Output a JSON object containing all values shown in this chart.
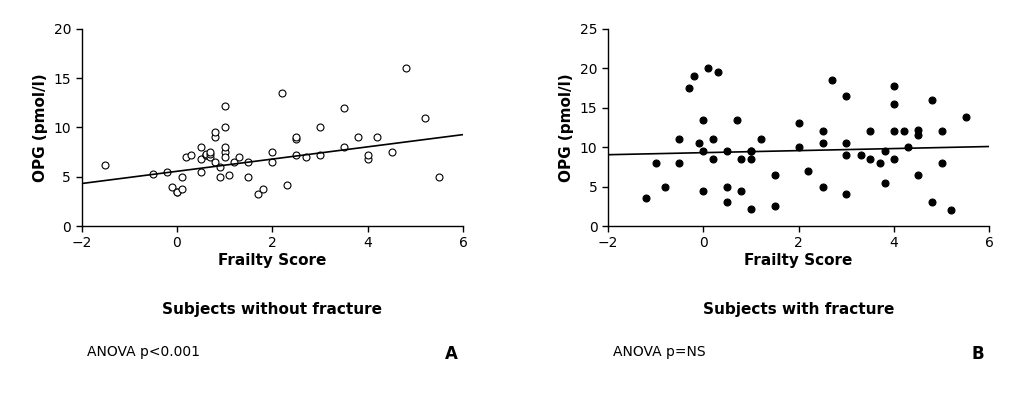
{
  "panel_A": {
    "title": "Subjects without fracture",
    "anova_text": "ANOVA p<0.001",
    "panel_label": "A",
    "xlabel": "Frailty Score",
    "ylabel": "OPG (pmol/l)",
    "xlim": [
      -2,
      6
    ],
    "ylim": [
      0,
      20
    ],
    "xticks": [
      -2,
      0,
      2,
      4,
      6
    ],
    "yticks": [
      0,
      5,
      10,
      15,
      20
    ],
    "marker": "o",
    "marker_facecolor": "white",
    "marker_edgecolor": "black",
    "marker_size": 5,
    "line_color": "black",
    "line_slope": 0.62,
    "line_intercept": 5.55,
    "scatter_x": [
      -1.5,
      -0.5,
      -0.2,
      -0.1,
      0.0,
      0.0,
      0.1,
      0.1,
      0.2,
      0.3,
      0.5,
      0.5,
      0.5,
      0.6,
      0.6,
      0.6,
      0.7,
      0.7,
      0.7,
      0.8,
      0.8,
      0.8,
      0.9,
      0.9,
      1.0,
      1.0,
      1.0,
      1.0,
      1.0,
      1.1,
      1.2,
      1.3,
      1.5,
      1.5,
      1.7,
      1.8,
      2.0,
      2.0,
      2.2,
      2.3,
      2.5,
      2.5,
      2.5,
      2.7,
      3.0,
      3.0,
      3.5,
      3.5,
      3.8,
      4.0,
      4.0,
      4.2,
      4.5,
      4.8,
      5.2,
      5.5
    ],
    "scatter_y": [
      6.2,
      5.3,
      5.5,
      4.0,
      3.5,
      3.5,
      3.8,
      5.0,
      7.0,
      7.2,
      6.8,
      5.5,
      8.0,
      7.2,
      7.2,
      7.3,
      7.0,
      7.3,
      7.5,
      6.5,
      9.0,
      9.5,
      5.0,
      6.0,
      7.5,
      7.0,
      8.0,
      10.0,
      12.2,
      5.2,
      6.5,
      7.0,
      6.5,
      5.0,
      3.2,
      3.8,
      6.5,
      7.5,
      13.5,
      4.2,
      8.8,
      9.0,
      7.2,
      7.0,
      7.2,
      10.0,
      8.0,
      12.0,
      9.0,
      6.8,
      7.2,
      9.0,
      7.5,
      16.0,
      11.0,
      5.0
    ]
  },
  "panel_B": {
    "title": "Subjects with fracture",
    "anova_text": "ANOVA p=NS",
    "panel_label": "B",
    "xlabel": "Frailty Score",
    "ylabel": "OPG (pmol/l)",
    "xlim": [
      -2,
      6
    ],
    "ylim": [
      0,
      25
    ],
    "xticks": [
      -2,
      0,
      2,
      4,
      6
    ],
    "yticks": [
      0,
      5,
      10,
      15,
      20,
      25
    ],
    "marker": "o",
    "marker_facecolor": "black",
    "marker_edgecolor": "black",
    "marker_size": 5,
    "line_color": "black",
    "line_slope": 0.13,
    "line_intercept": 9.3,
    "scatter_x": [
      -1.2,
      -1.0,
      -0.8,
      -0.5,
      -0.5,
      -0.3,
      -0.2,
      -0.1,
      0.0,
      0.0,
      0.0,
      0.1,
      0.2,
      0.2,
      0.3,
      0.5,
      0.5,
      0.5,
      0.7,
      0.8,
      0.8,
      1.0,
      1.0,
      1.0,
      1.0,
      1.2,
      1.5,
      1.5,
      2.0,
      2.0,
      2.2,
      2.5,
      2.5,
      2.5,
      2.7,
      3.0,
      3.0,
      3.0,
      3.0,
      3.3,
      3.5,
      3.5,
      3.7,
      3.8,
      3.8,
      4.0,
      4.0,
      4.0,
      4.0,
      4.2,
      4.3,
      4.5,
      4.5,
      4.5,
      4.8,
      4.8,
      5.0,
      5.0,
      5.2,
      5.5
    ],
    "scatter_y": [
      3.5,
      8.0,
      5.0,
      8.0,
      11.0,
      17.5,
      19.0,
      10.5,
      13.5,
      9.5,
      4.5,
      20.0,
      11.0,
      8.5,
      19.5,
      9.5,
      5.0,
      3.0,
      13.5,
      8.5,
      4.5,
      9.5,
      9.5,
      8.5,
      2.2,
      11.0,
      6.5,
      2.5,
      13.0,
      10.0,
      7.0,
      12.0,
      10.5,
      5.0,
      18.5,
      16.5,
      10.5,
      9.0,
      4.0,
      9.0,
      12.0,
      8.5,
      8.0,
      9.5,
      5.5,
      17.8,
      15.5,
      12.0,
      8.5,
      12.0,
      10.0,
      12.2,
      11.5,
      6.5,
      16.0,
      3.0,
      12.0,
      8.0,
      2.0,
      13.8
    ]
  },
  "figure_bg": "#ffffff",
  "font_family": "DejaVu Sans"
}
